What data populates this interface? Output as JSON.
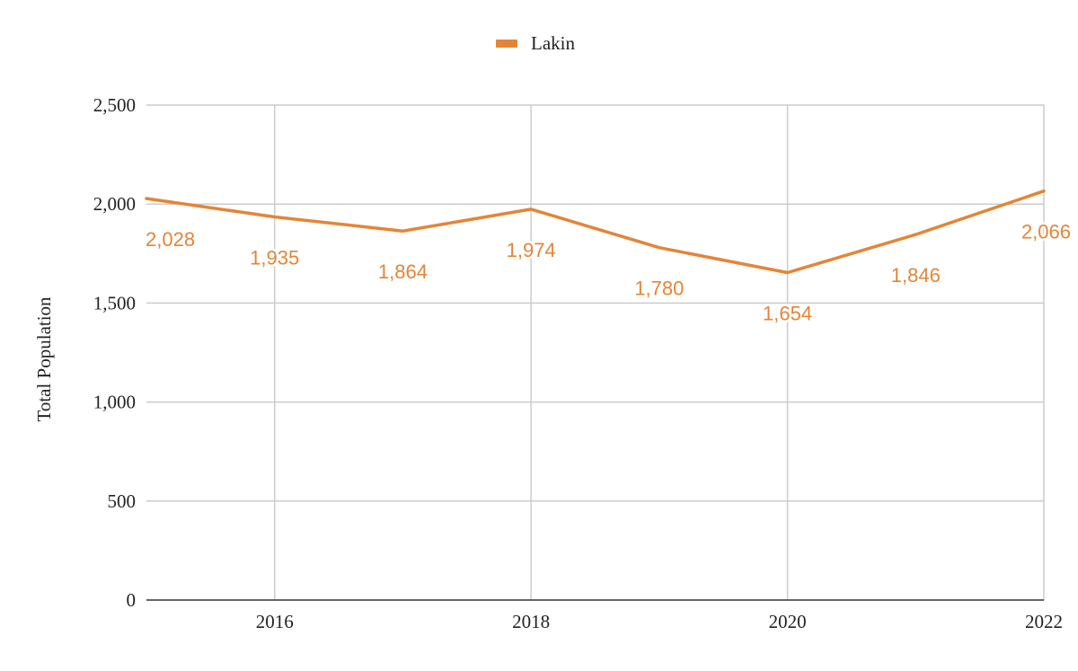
{
  "chart_data": {
    "type": "line",
    "title": "",
    "xlabel": "",
    "ylabel": "Total Population",
    "x": [
      2015,
      2016,
      2017,
      2018,
      2019,
      2020,
      2021,
      2022
    ],
    "x_ticks": [
      2016,
      2018,
      2020,
      2022
    ],
    "y_ticks": [
      0,
      500,
      1000,
      1500,
      2000,
      2500
    ],
    "y_tick_labels": [
      "0",
      "500",
      "1,000",
      "1,500",
      "2,000",
      "2,500"
    ],
    "ylim": [
      0,
      2500
    ],
    "xlim": [
      2015,
      2022
    ],
    "grid": true,
    "legend_position": "top-center",
    "series": [
      {
        "name": "Lakin",
        "color": "#E38537",
        "values": [
          2028,
          1935,
          1864,
          1974,
          1780,
          1654,
          1846,
          2066
        ],
        "labels": [
          "2,028",
          "1,935",
          "1,864",
          "1,974",
          "1,780",
          "1,654",
          "1,846",
          "2,066"
        ]
      }
    ]
  }
}
